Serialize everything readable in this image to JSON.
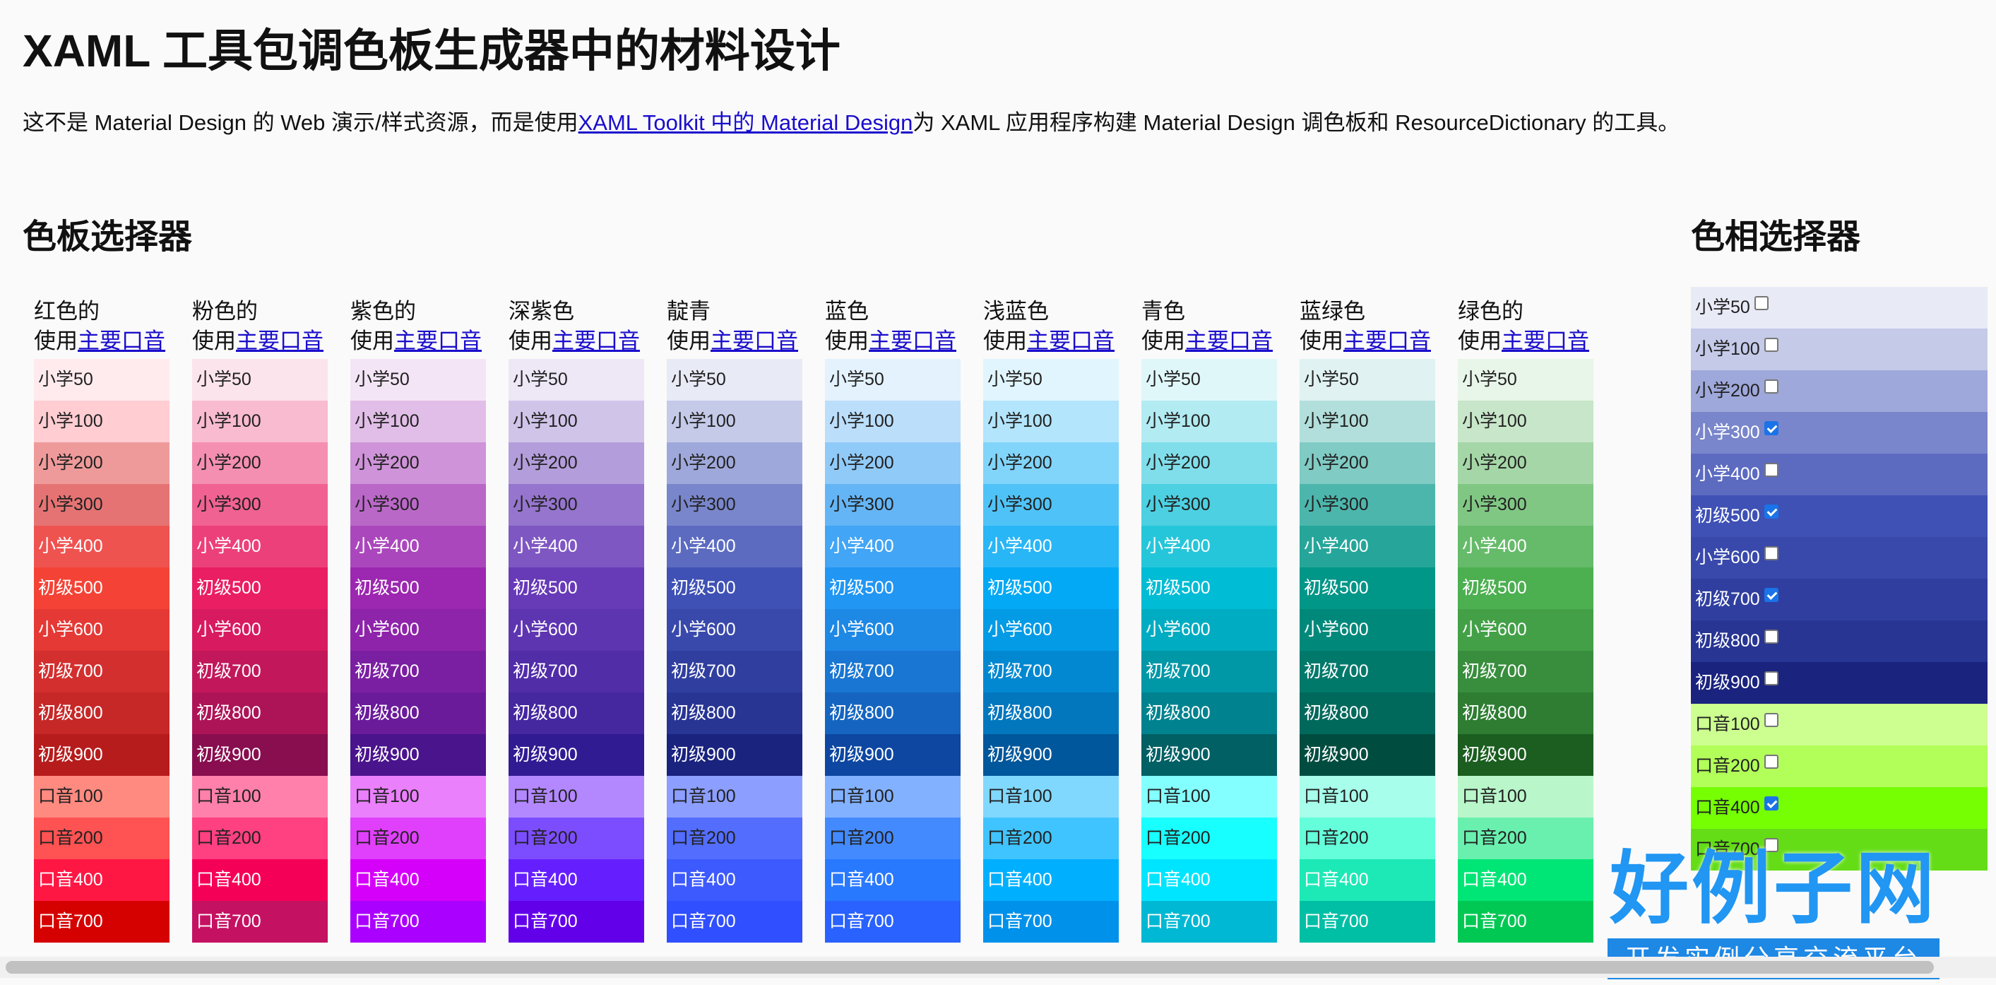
{
  "page": {
    "title": "XAML 工具包调色板生成器中的材料设计",
    "intro_before": "这不是 Material Design 的 Web 演示/样式资源，而是使用",
    "intro_link": "XAML Toolkit 中的 Material Design",
    "intro_after": "为 XAML 应用程序构建 Material Design 调色板和 ResourceDictionary 的工具。"
  },
  "palette_picker": {
    "heading": "色板选择器",
    "use_prefix": "使用",
    "use_link": "主要口音",
    "shade_labels": [
      "小学50",
      "小学100",
      "小学200",
      "小学300",
      "小学400",
      "初级500",
      "小学600",
      "初级700",
      "初级800",
      "初级900",
      "口音100",
      "口音200",
      "口音400",
      "口音700"
    ],
    "colors": [
      {
        "name": "红色的",
        "shades": [
          "#ffebee",
          "#ffcdd2",
          "#ef9a9a",
          "#e57373",
          "#ef5350",
          "#f44336",
          "#e53935",
          "#d32f2f",
          "#c62828",
          "#b71c1c",
          "#ff8a80",
          "#ff5252",
          "#ff1744",
          "#d50000"
        ]
      },
      {
        "name": "粉色的",
        "shades": [
          "#fce4ec",
          "#f8bbd0",
          "#f48fb1",
          "#f06292",
          "#ec407a",
          "#e91e63",
          "#d81b60",
          "#c2185b",
          "#ad1457",
          "#880e4f",
          "#ff80ab",
          "#ff4081",
          "#f50057",
          "#c51162"
        ]
      },
      {
        "name": "紫色的",
        "shades": [
          "#f3e5f5",
          "#e1bee7",
          "#ce93d8",
          "#ba68c8",
          "#ab47bc",
          "#9c27b0",
          "#8e24aa",
          "#7b1fa2",
          "#6a1b9a",
          "#4a148c",
          "#ea80fc",
          "#e040fb",
          "#d500f9",
          "#aa00ff"
        ]
      },
      {
        "name": "深紫色",
        "shades": [
          "#ede7f6",
          "#d1c4e9",
          "#b39ddb",
          "#9575cd",
          "#7e57c2",
          "#673ab7",
          "#5e35b1",
          "#512da8",
          "#4527a0",
          "#311b92",
          "#b388ff",
          "#7c4dff",
          "#651fff",
          "#6200ea"
        ]
      },
      {
        "name": "靛青",
        "shades": [
          "#e8eaf6",
          "#c5cae9",
          "#9fa8da",
          "#7986cb",
          "#5c6bc0",
          "#3f51b5",
          "#3949ab",
          "#303f9f",
          "#283593",
          "#1a237e",
          "#8c9eff",
          "#536dfe",
          "#3d5afe",
          "#304ffe"
        ]
      },
      {
        "name": "蓝色",
        "shades": [
          "#e3f2fd",
          "#bbdefb",
          "#90caf9",
          "#64b5f6",
          "#42a5f5",
          "#2196f3",
          "#1e88e5",
          "#1976d2",
          "#1565c0",
          "#0d47a1",
          "#82b1ff",
          "#448aff",
          "#2979ff",
          "#2962ff"
        ]
      },
      {
        "name": "浅蓝色",
        "shades": [
          "#e1f5fe",
          "#b3e5fc",
          "#81d4fa",
          "#4fc3f7",
          "#29b6f6",
          "#03a9f4",
          "#039be5",
          "#0288d1",
          "#0277bd",
          "#01579b",
          "#80d8ff",
          "#40c4ff",
          "#00b0ff",
          "#0091ea"
        ]
      },
      {
        "name": "青色",
        "shades": [
          "#e0f7fa",
          "#b2ebf2",
          "#80deea",
          "#4dd0e1",
          "#26c6da",
          "#00bcd4",
          "#00acc1",
          "#0097a7",
          "#00838f",
          "#006064",
          "#84ffff",
          "#18ffff",
          "#00e5ff",
          "#00b8d4"
        ]
      },
      {
        "name": "蓝绿色",
        "shades": [
          "#e0f2f1",
          "#b2dfdb",
          "#80cbc4",
          "#4db6ac",
          "#26a69a",
          "#009688",
          "#00897b",
          "#00796b",
          "#00695c",
          "#004d40",
          "#a7ffeb",
          "#64ffda",
          "#1de9b6",
          "#00bfa5"
        ]
      },
      {
        "name": "绿色的",
        "shades": [
          "#e8f5e9",
          "#c8e6c9",
          "#a5d6a7",
          "#81c784",
          "#66bb6a",
          "#4caf50",
          "#43a047",
          "#388e3c",
          "#2e7d32",
          "#1b5e20",
          "#b9f6ca",
          "#69f0ae",
          "#00e676",
          "#00c853"
        ]
      }
    ]
  },
  "hue_picker": {
    "heading": "色相选择器",
    "rows": [
      {
        "label": "小学50",
        "color": "#e8eaf6",
        "checked": false
      },
      {
        "label": "小学100",
        "color": "#c5cae9",
        "checked": false
      },
      {
        "label": "小学200",
        "color": "#9fa8da",
        "checked": false
      },
      {
        "label": "小学300",
        "color": "#7986cb",
        "checked": true
      },
      {
        "label": "小学400",
        "color": "#5c6bc0",
        "checked": false
      },
      {
        "label": "初级500",
        "color": "#3f51b5",
        "checked": true
      },
      {
        "label": "小学600",
        "color": "#3949ab",
        "checked": false
      },
      {
        "label": "初级700",
        "color": "#303f9f",
        "checked": true
      },
      {
        "label": "初级800",
        "color": "#283593",
        "checked": false
      },
      {
        "label": "初级900",
        "color": "#1a237e",
        "checked": false
      },
      {
        "label": "口音100",
        "color": "#ccff90",
        "checked": false
      },
      {
        "label": "口音200",
        "color": "#b2ff59",
        "checked": false
      },
      {
        "label": "口音400",
        "color": "#76ff03",
        "checked": true
      },
      {
        "label": "口音700",
        "color": "#64dd17",
        "checked": false
      }
    ]
  },
  "watermark": {
    "main": "好例子网",
    "sub": "开发实例分享交流平台"
  }
}
